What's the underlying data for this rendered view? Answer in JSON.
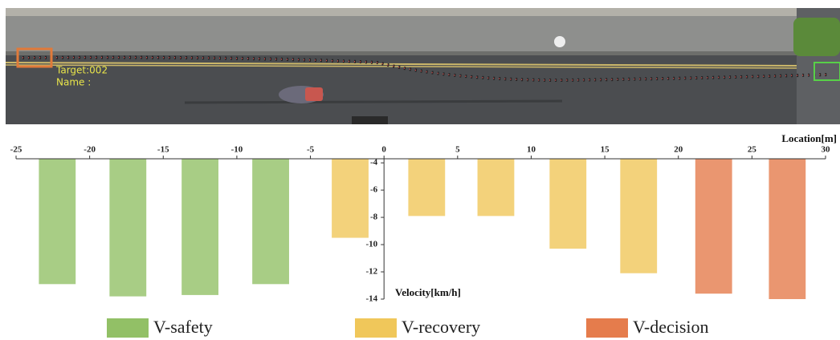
{
  "scene": {
    "labels": [
      "Target:002",
      "Name :"
    ]
  },
  "chart_data": {
    "type": "bar",
    "x_label": "Location[m]",
    "y_label": "Velocity[km/h]",
    "xlim": [
      -25,
      30
    ],
    "xticks": [
      -25,
      -20,
      -15,
      -10,
      -5,
      0,
      5,
      10,
      15,
      20,
      25,
      30
    ],
    "ylim": [
      -14,
      -3.7
    ],
    "yticks": [
      -4,
      -6,
      -8,
      -10,
      -12,
      -14
    ],
    "series": [
      {
        "name": "V-safety",
        "color": "#92c066",
        "x": [
          -22.2,
          -17.4,
          -12.5,
          -7.7
        ],
        "values": [
          -12.9,
          -13.8,
          -13.7,
          -12.9
        ]
      },
      {
        "name": "V-recovery",
        "color": "#f0c75a",
        "x": [
          -2.3,
          2.9,
          7.6,
          12.5,
          17.3
        ],
        "values": [
          -9.5,
          -7.9,
          -7.9,
          -10.3,
          -12.1
        ]
      },
      {
        "name": "V-decision",
        "color": "#e57c4c",
        "x": [
          22.4,
          27.4
        ],
        "values": [
          -13.6,
          -14.0
        ]
      }
    ]
  }
}
